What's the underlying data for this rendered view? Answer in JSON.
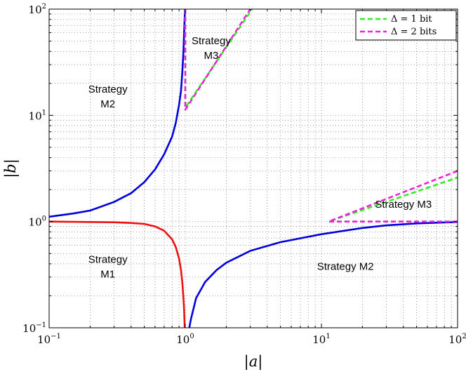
{
  "chart_data": {
    "type": "line",
    "title": "",
    "xlabel": "|a|",
    "ylabel": "|b|",
    "xscale": "log",
    "yscale": "log",
    "xlim": [
      0.1,
      100
    ],
    "ylim": [
      0.1,
      100
    ],
    "grid": true,
    "x_ticks": [
      {
        "base": "10",
        "exp": "−1"
      },
      {
        "base": "10",
        "exp": "0"
      },
      {
        "base": "10",
        "exp": "1"
      },
      {
        "base": "10",
        "exp": "2"
      }
    ],
    "y_ticks": [
      {
        "base": "10",
        "exp": "−1"
      },
      {
        "base": "10",
        "exp": "0"
      },
      {
        "base": "10",
        "exp": "1"
      },
      {
        "base": "10",
        "exp": "2"
      }
    ],
    "legend": {
      "location": "top-right",
      "entries": [
        {
          "label": "Δ = 1 bit",
          "color": "#33ee22",
          "dash": "dashed"
        },
        {
          "label": "Δ = 2 bits",
          "color": "#ee22dd",
          "dash": "dashed"
        }
      ]
    },
    "series": [
      {
        "name": "M1/M2 boundary (upper-left)",
        "color": "#0000dd",
        "style": "solid",
        "points": [
          [
            0.1,
            1.11
          ],
          [
            0.15,
            1.19
          ],
          [
            0.2,
            1.27
          ],
          [
            0.3,
            1.53
          ],
          [
            0.4,
            1.85
          ],
          [
            0.5,
            2.35
          ],
          [
            0.6,
            3.1
          ],
          [
            0.7,
            4.3
          ],
          [
            0.8,
            6.3
          ],
          [
            0.85,
            8.4
          ],
          [
            0.9,
            12.5
          ],
          [
            0.93,
            17
          ],
          [
            0.95,
            25
          ],
          [
            0.97,
            40
          ],
          [
            0.985,
            70
          ],
          [
            0.995,
            100
          ]
        ]
      },
      {
        "name": "M1 boundary",
        "color": "#ee1111",
        "style": "solid",
        "points": [
          [
            0.1,
            1.0
          ],
          [
            0.2,
            0.99
          ],
          [
            0.3,
            0.985
          ],
          [
            0.4,
            0.97
          ],
          [
            0.5,
            0.95
          ],
          [
            0.6,
            0.9
          ],
          [
            0.7,
            0.82
          ],
          [
            0.8,
            0.68
          ],
          [
            0.85,
            0.58
          ],
          [
            0.9,
            0.45
          ],
          [
            0.93,
            0.35
          ],
          [
            0.95,
            0.27
          ],
          [
            0.97,
            0.19
          ],
          [
            0.98,
            0.15
          ],
          [
            0.99,
            0.1
          ]
        ]
      },
      {
        "name": "M1/M2 boundary (lower-right)",
        "color": "#0000dd",
        "style": "solid",
        "points": [
          [
            1.07,
            0.1
          ],
          [
            1.1,
            0.12
          ],
          [
            1.2,
            0.19
          ],
          [
            1.4,
            0.27
          ],
          [
            1.7,
            0.35
          ],
          [
            2,
            0.41
          ],
          [
            3,
            0.53
          ],
          [
            5,
            0.64
          ],
          [
            10,
            0.76
          ],
          [
            20,
            0.87
          ],
          [
            30,
            0.92
          ],
          [
            50,
            0.96
          ],
          [
            100,
            0.99
          ]
        ]
      },
      {
        "name": "M3 boundary Δ=1 bit (upper)",
        "color": "#33ee22",
        "style": "dashed",
        "points": [
          [
            1.0,
            100
          ],
          [
            1.0,
            11.8
          ],
          [
            3.1,
            100
          ]
        ]
      },
      {
        "name": "M3 boundary Δ=2 bits (upper)",
        "color": "#ee22dd",
        "style": "dashed",
        "points": [
          [
            1.0,
            100
          ],
          [
            1.0,
            11.3
          ],
          [
            3.0,
            100
          ]
        ]
      },
      {
        "name": "M3 boundary Δ=1 bit (lower)",
        "color": "#33ee22",
        "style": "dashed",
        "points": [
          [
            100,
            1.0
          ],
          [
            11.3,
            1.0
          ],
          [
            100,
            2.6
          ]
        ]
      },
      {
        "name": "M3 boundary Δ=2 bits (lower)",
        "color": "#ee22dd",
        "style": "dashed",
        "points": [
          [
            100,
            1.0
          ],
          [
            11.3,
            1.0
          ],
          [
            100,
            3.0
          ]
        ]
      }
    ],
    "annotations": [
      {
        "lines": [
          "Strategy",
          "M3"
        ],
        "x": 1.55,
        "y": 40
      },
      {
        "lines": [
          "Strategy",
          "M2"
        ],
        "x": 0.27,
        "y": 14
      },
      {
        "lines": [
          "Strategy",
          "M1"
        ],
        "x": 0.27,
        "y": 0.35
      },
      {
        "lines": [
          "Strategy M2"
        ],
        "x": 15,
        "y": 0.35
      },
      {
        "lines": [
          "Strategy M3"
        ],
        "x": 40,
        "y": 1.35
      }
    ]
  }
}
